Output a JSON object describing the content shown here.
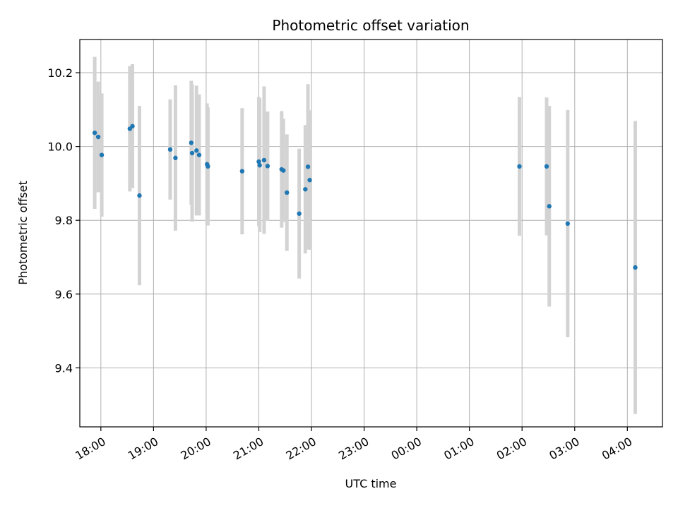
{
  "chart_data": {
    "type": "scatter",
    "title": "Photometric offset variation",
    "xlabel": "UTC time",
    "ylabel": "Photometric offset",
    "x_unit": "UTC time (night spanning two calendar days)",
    "xlim": [
      "17:36",
      "04:40"
    ],
    "ylim": [
      9.24,
      10.29
    ],
    "x_ticks": [
      "18:00",
      "19:00",
      "20:00",
      "21:00",
      "22:00",
      "23:00",
      "00:00",
      "01:00",
      "02:00",
      "03:00",
      "04:00"
    ],
    "y_ticks": [
      9.4,
      9.6,
      9.8,
      10.0,
      10.2
    ],
    "y_tick_labels": [
      "9.4",
      "9.6",
      "9.8",
      "10.0",
      "10.2"
    ],
    "grid": true,
    "legend": "none",
    "colors": {
      "point": "#1f77b4",
      "errorbar": "#d3d3d3",
      "grid": "#b0b0b0"
    },
    "points": [
      {
        "time": "17:53",
        "offset": 10.037,
        "err": 0.206
      },
      {
        "time": "17:57",
        "offset": 10.026,
        "err": 0.15
      },
      {
        "time": "18:01",
        "offset": 9.977,
        "err": 0.167
      },
      {
        "time": "18:33",
        "offset": 10.048,
        "err": 0.17
      },
      {
        "time": "18:36",
        "offset": 10.055,
        "err": 0.168
      },
      {
        "time": "18:44",
        "offset": 9.867,
        "err": 0.243
      },
      {
        "time": "19:19",
        "offset": 9.992,
        "err": 0.136
      },
      {
        "time": "19:25",
        "offset": 9.969,
        "err": 0.197
      },
      {
        "time": "19:43",
        "offset": 10.01,
        "err": 0.168
      },
      {
        "time": "19:44",
        "offset": 9.982,
        "err": 0.186
      },
      {
        "time": "19:49",
        "offset": 9.989,
        "err": 0.176
      },
      {
        "time": "19:52",
        "offset": 9.977,
        "err": 0.164
      },
      {
        "time": "20:01",
        "offset": 9.952,
        "err": 0.165
      },
      {
        "time": "20:02",
        "offset": 9.946,
        "err": 0.16
      },
      {
        "time": "20:41",
        "offset": 9.933,
        "err": 0.171
      },
      {
        "time": "21:00",
        "offset": 9.959,
        "err": 0.175
      },
      {
        "time": "21:01",
        "offset": 9.949,
        "err": 0.181
      },
      {
        "time": "21:06",
        "offset": 9.963,
        "err": 0.2
      },
      {
        "time": "21:10",
        "offset": 9.947,
        "err": 0.148
      },
      {
        "time": "21:26",
        "offset": 9.938,
        "err": 0.158
      },
      {
        "time": "21:28",
        "offset": 9.935,
        "err": 0.14
      },
      {
        "time": "21:32",
        "offset": 9.875,
        "err": 0.158
      },
      {
        "time": "21:46",
        "offset": 9.818,
        "err": 0.176
      },
      {
        "time": "21:53",
        "offset": 9.884,
        "err": 0.174
      },
      {
        "time": "21:56",
        "offset": 9.945,
        "err": 0.224
      },
      {
        "time": "21:58",
        "offset": 9.909,
        "err": 0.189
      },
      {
        "time": "01:57",
        "offset": 9.946,
        "err": 0.188
      },
      {
        "time": "02:28",
        "offset": 9.946,
        "err": 0.187
      },
      {
        "time": "02:31",
        "offset": 9.838,
        "err": 0.272
      },
      {
        "time": "02:52",
        "offset": 9.791,
        "err": 0.308
      },
      {
        "time": "04:09",
        "offset": 9.672,
        "err": 0.397
      }
    ]
  }
}
